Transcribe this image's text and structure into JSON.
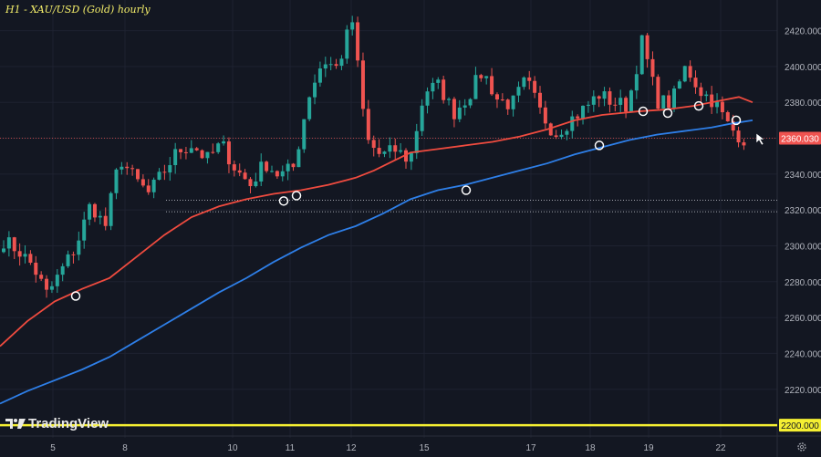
{
  "title": "H1 - XAU/USD (Gold) hourly",
  "brand": "TradingView",
  "colors": {
    "background": "#131722",
    "grid": "#1e2230",
    "bull": "#26a69a",
    "bear": "#ef5350",
    "ma_fast": "#ef4b3f",
    "ma_slow": "#2e7fe8",
    "price_line": "#ef5350",
    "level": "#f5ef32",
    "axis_text": "#b2b5be"
  },
  "icons": [
    "tradingview-logo-icon",
    "settings-gear-icon",
    "cursor-arrow-icon",
    "touch-circle-icon"
  ],
  "chart_data": {
    "type": "candlestick",
    "title": "H1 - XAU/USD (Gold) hourly",
    "ylim": [
      2198,
      2432
    ],
    "yticks": [
      "2420.000",
      "2400.000",
      "2380.000",
      "2360.000",
      "2340.000",
      "2320.000",
      "2300.000",
      "2280.000",
      "2260.000",
      "2240.000",
      "2220.000",
      "2200.000"
    ],
    "xticks": [
      "5",
      "8",
      "10",
      "11",
      "12",
      "15",
      "17",
      "18",
      "19",
      "22"
    ],
    "current_price": "2360.030",
    "horizontal_level": "2200.000",
    "dotted_levels": [
      2325.5,
      2319
    ],
    "anchors": [
      [
        2302,
        2304
      ],
      [
        2295,
        2300
      ],
      [
        2288,
        2290
      ],
      [
        2270,
        2275
      ],
      [
        2283,
        2290
      ],
      [
        2298,
        2302
      ],
      [
        2322,
        2325
      ],
      [
        2309,
        2312
      ],
      [
        2346,
        2352
      ],
      [
        2335,
        2340
      ],
      [
        2326,
        2332
      ],
      [
        2338,
        2344
      ],
      [
        2350,
        2356
      ],
      [
        2355,
        2358
      ],
      [
        2346,
        2350
      ],
      [
        2356,
        2358
      ],
      [
        2340,
        2345
      ],
      [
        2332,
        2336
      ],
      [
        2345,
        2348
      ],
      [
        2336,
        2342
      ],
      [
        2343,
        2345
      ],
      [
        2382,
        2385
      ],
      [
        2402,
        2405
      ],
      [
        2398,
        2400
      ],
      [
        2425,
        2428
      ],
      [
        2358,
        2360
      ],
      [
        2348,
        2352
      ],
      [
        2352,
        2355
      ],
      [
        2345,
        2350
      ],
      [
        2385,
        2388
      ],
      [
        2388,
        2391
      ],
      [
        2373,
        2375
      ],
      [
        2382,
        2385
      ],
      [
        2395,
        2400
      ],
      [
        2380,
        2384
      ],
      [
        2377,
        2380
      ],
      [
        2390,
        2395
      ],
      [
        2373,
        2375
      ],
      [
        2361,
        2364
      ],
      [
        2368,
        2372
      ],
      [
        2375,
        2378
      ],
      [
        2383,
        2386
      ],
      [
        2378,
        2382
      ],
      [
        2376,
        2380
      ],
      [
        2413,
        2416
      ],
      [
        2380,
        2382
      ],
      [
        2378,
        2381
      ],
      [
        2399,
        2401
      ],
      [
        2385,
        2388
      ],
      [
        2378,
        2382
      ],
      [
        2364,
        2368
      ],
      [
        2358,
        2361
      ]
    ],
    "series": [
      {
        "name": "Moving average (red)",
        "points": [
          [
            0,
            2244
          ],
          [
            30,
            2258
          ],
          [
            60,
            2269
          ],
          [
            90,
            2276
          ],
          [
            120,
            2282
          ],
          [
            150,
            2294
          ],
          [
            180,
            2306
          ],
          [
            210,
            2316
          ],
          [
            240,
            2322
          ],
          [
            270,
            2326
          ],
          [
            300,
            2329
          ],
          [
            330,
            2331
          ],
          [
            360,
            2334
          ],
          [
            390,
            2338
          ],
          [
            410,
            2342
          ],
          [
            430,
            2347
          ],
          [
            450,
            2352
          ],
          [
            480,
            2354
          ],
          [
            510,
            2356
          ],
          [
            540,
            2358
          ],
          [
            570,
            2361
          ],
          [
            600,
            2365
          ],
          [
            630,
            2370
          ],
          [
            660,
            2373
          ],
          [
            700,
            2375
          ],
          [
            730,
            2376
          ],
          [
            760,
            2378
          ],
          [
            790,
            2381
          ],
          [
            810,
            2383
          ],
          [
            825,
            2380
          ]
        ]
      },
      {
        "name": "Moving average (blue)",
        "points": [
          [
            0,
            2212
          ],
          [
            30,
            2219
          ],
          [
            60,
            2225
          ],
          [
            90,
            2231
          ],
          [
            120,
            2238
          ],
          [
            150,
            2247
          ],
          [
            180,
            2256
          ],
          [
            210,
            2265
          ],
          [
            240,
            2274
          ],
          [
            270,
            2282
          ],
          [
            300,
            2291
          ],
          [
            330,
            2299
          ],
          [
            360,
            2306
          ],
          [
            390,
            2311
          ],
          [
            420,
            2318
          ],
          [
            450,
            2326
          ],
          [
            480,
            2331
          ],
          [
            510,
            2334
          ],
          [
            540,
            2338
          ],
          [
            570,
            2342
          ],
          [
            600,
            2346
          ],
          [
            630,
            2351
          ],
          [
            660,
            2355
          ],
          [
            690,
            2359
          ],
          [
            720,
            2362
          ],
          [
            750,
            2364
          ],
          [
            780,
            2366
          ],
          [
            800,
            2368
          ],
          [
            825,
            2370
          ]
        ]
      }
    ],
    "touch_markers": [
      [
        83,
        2272
      ],
      [
        311,
        2325
      ],
      [
        325,
        2328
      ],
      [
        511,
        2331
      ],
      [
        657,
        2356
      ],
      [
        705,
        2375
      ],
      [
        732,
        2374
      ],
      [
        766,
        2378
      ],
      [
        807,
        2370
      ]
    ]
  }
}
